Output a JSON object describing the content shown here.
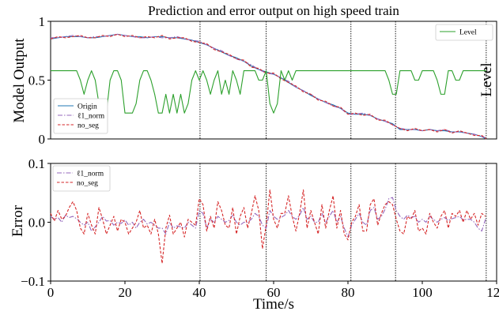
{
  "chart_data": [
    {
      "type": "line",
      "title": "Prediction and error output on high speed train",
      "ylabel": "Model Output",
      "ylabel_right": "Level",
      "xlim": [
        0,
        120
      ],
      "ylim": [
        0,
        1
      ],
      "yticks": [
        0,
        0.5,
        1
      ],
      "ytick_labels": [
        "0",
        "0.5",
        "1"
      ],
      "segment_lines_x": [
        40.2,
        58,
        80.8,
        92.8,
        117.2
      ],
      "series": [
        {
          "name": "Origin",
          "color": "#1f77b4",
          "style": "solid",
          "x": [
            0,
            2,
            4,
            6,
            8,
            10,
            12,
            14,
            16,
            18,
            20,
            22,
            24,
            26,
            28,
            30,
            32,
            34,
            36,
            38,
            40,
            42,
            44,
            46,
            48,
            50,
            52,
            54,
            56,
            58,
            60,
            62,
            64,
            66,
            68,
            70,
            72,
            74,
            76,
            78,
            80,
            82,
            84,
            86,
            88,
            90,
            92,
            94,
            96,
            98,
            100,
            102,
            104,
            106,
            108,
            110,
            112,
            114,
            116,
            117.2
          ],
          "values": [
            0.85,
            0.86,
            0.87,
            0.87,
            0.87,
            0.86,
            0.86,
            0.87,
            0.88,
            0.89,
            0.88,
            0.87,
            0.87,
            0.86,
            0.87,
            0.87,
            0.86,
            0.86,
            0.85,
            0.84,
            0.82,
            0.8,
            0.77,
            0.74,
            0.71,
            0.69,
            0.66,
            0.62,
            0.59,
            0.57,
            0.55,
            0.52,
            0.48,
            0.44,
            0.41,
            0.37,
            0.34,
            0.31,
            0.29,
            0.26,
            0.22,
            0.21,
            0.21,
            0.2,
            0.17,
            0.15,
            0.13,
            0.08,
            0.08,
            0.08,
            0.07,
            0.08,
            0.07,
            0.07,
            0.06,
            0.06,
            0.05,
            0.04,
            0.02,
            0.0
          ]
        },
        {
          "name": "ℓ1_norm",
          "color": "#9467bd",
          "style": "dashdot",
          "x": [
            0,
            2,
            4,
            6,
            8,
            10,
            12,
            14,
            16,
            18,
            20,
            22,
            24,
            26,
            28,
            30,
            32,
            34,
            36,
            38,
            40,
            42,
            44,
            46,
            48,
            50,
            52,
            54,
            56,
            58,
            60,
            62,
            64,
            66,
            68,
            70,
            72,
            74,
            76,
            78,
            80,
            82,
            84,
            86,
            88,
            90,
            92,
            94,
            96,
            98,
            100,
            102,
            104,
            106,
            108,
            110,
            112,
            114,
            116,
            117.2
          ],
          "values": [
            0.86,
            0.86,
            0.87,
            0.88,
            0.87,
            0.86,
            0.87,
            0.87,
            0.88,
            0.89,
            0.88,
            0.87,
            0.86,
            0.86,
            0.87,
            0.86,
            0.86,
            0.87,
            0.85,
            0.84,
            0.83,
            0.8,
            0.77,
            0.75,
            0.71,
            0.68,
            0.66,
            0.63,
            0.59,
            0.56,
            0.55,
            0.52,
            0.49,
            0.44,
            0.41,
            0.38,
            0.34,
            0.31,
            0.28,
            0.26,
            0.21,
            0.21,
            0.22,
            0.2,
            0.17,
            0.15,
            0.12,
            0.09,
            0.08,
            0.08,
            0.07,
            0.08,
            0.07,
            0.08,
            0.06,
            0.06,
            0.05,
            0.04,
            0.02,
            0.01
          ]
        },
        {
          "name": "no_seg",
          "color": "#d62728",
          "style": "dashed",
          "x": [
            0,
            2,
            4,
            6,
            8,
            10,
            12,
            14,
            16,
            18,
            20,
            22,
            24,
            26,
            28,
            30,
            32,
            34,
            36,
            38,
            40,
            42,
            44,
            46,
            48,
            50,
            52,
            54,
            56,
            58,
            60,
            62,
            64,
            66,
            68,
            70,
            72,
            74,
            76,
            78,
            80,
            82,
            84,
            86,
            88,
            90,
            92,
            94,
            96,
            98,
            100,
            102,
            104,
            106,
            108,
            110,
            112,
            114,
            116,
            117.2
          ],
          "values": [
            0.85,
            0.87,
            0.86,
            0.87,
            0.88,
            0.86,
            0.86,
            0.88,
            0.87,
            0.89,
            0.87,
            0.88,
            0.86,
            0.87,
            0.86,
            0.88,
            0.85,
            0.86,
            0.86,
            0.83,
            0.82,
            0.81,
            0.76,
            0.74,
            0.72,
            0.68,
            0.67,
            0.61,
            0.6,
            0.56,
            0.56,
            0.51,
            0.48,
            0.45,
            0.4,
            0.38,
            0.33,
            0.32,
            0.28,
            0.27,
            0.21,
            0.22,
            0.2,
            0.21,
            0.16,
            0.16,
            0.12,
            0.09,
            0.07,
            0.09,
            0.07,
            0.08,
            0.06,
            0.08,
            0.05,
            0.07,
            0.05,
            0.03,
            0.03,
            0.0
          ]
        },
        {
          "name": "Level",
          "color": "#2ca02c",
          "style": "solid",
          "x": [
            0,
            7,
            8,
            9,
            10,
            11,
            12,
            13,
            14,
            15,
            16,
            17,
            18,
            19,
            20,
            21,
            22,
            23,
            24,
            25,
            26,
            27,
            28,
            29,
            30,
            31,
            32,
            33,
            34,
            35,
            36,
            37,
            38,
            39,
            40,
            41,
            42,
            43,
            44,
            45,
            46,
            47,
            48,
            49,
            50,
            51,
            52,
            55,
            56,
            57,
            58,
            59,
            60,
            61,
            62,
            63,
            64,
            65,
            66,
            90,
            91,
            92,
            93,
            94,
            95,
            96,
            97,
            98,
            99,
            100,
            101,
            102,
            103,
            104,
            105,
            106,
            107,
            108,
            109,
            110,
            111,
            112,
            113,
            117.2
          ],
          "values": [
            0.58,
            0.58,
            0.5,
            0.38,
            0.5,
            0.58,
            0.5,
            0.3,
            0.22,
            0.22,
            0.5,
            0.58,
            0.58,
            0.5,
            0.22,
            0.22,
            0.22,
            0.3,
            0.5,
            0.58,
            0.58,
            0.5,
            0.38,
            0.22,
            0.22,
            0.38,
            0.22,
            0.38,
            0.22,
            0.38,
            0.22,
            0.3,
            0.5,
            0.58,
            0.5,
            0.58,
            0.5,
            0.38,
            0.5,
            0.58,
            0.38,
            0.5,
            0.38,
            0.58,
            0.5,
            0.38,
            0.58,
            0.58,
            0.5,
            0.5,
            0.58,
            0.3,
            0.22,
            0.3,
            0.58,
            0.5,
            0.58,
            0.5,
            0.58,
            0.58,
            0.5,
            0.38,
            0.38,
            0.58,
            0.58,
            0.58,
            0.58,
            0.5,
            0.5,
            0.58,
            0.58,
            0.58,
            0.58,
            0.5,
            0.38,
            0.38,
            0.58,
            0.58,
            0.5,
            0.5,
            0.58,
            0.58,
            0.58,
            0.58
          ]
        }
      ],
      "legend": [
        {
          "position": "bottom-left",
          "entries": [
            "Origin",
            "ℓ1_norm",
            "no_seg"
          ]
        },
        {
          "position": "top-right",
          "entries": [
            "Level"
          ]
        }
      ]
    },
    {
      "type": "line",
      "xlabel": "Time/s",
      "ylabel": "Error",
      "xlim": [
        0,
        120
      ],
      "ylim": [
        -0.1,
        0.1
      ],
      "xticks": [
        0,
        20,
        40,
        60,
        80,
        100,
        120
      ],
      "xtick_labels": [
        "0",
        "20",
        "40",
        "60",
        "80",
        "100",
        "120"
      ],
      "yticks": [
        -0.1,
        0.0,
        0.1
      ],
      "ytick_labels": [
        "−0.1",
        "0.0",
        "0.1"
      ],
      "segment_lines_x": [
        40.2,
        58,
        80.8,
        92.8,
        117.2
      ],
      "series": [
        {
          "name": "ℓ1_norm",
          "color": "#9467bd",
          "style": "dashdot",
          "x": [
            0,
            1,
            2,
            3,
            4,
            5,
            6,
            7,
            8,
            9,
            10,
            11,
            12,
            13,
            14,
            15,
            16,
            17,
            18,
            19,
            20,
            21,
            22,
            23,
            24,
            25,
            26,
            27,
            28,
            29,
            30,
            31,
            32,
            33,
            34,
            35,
            36,
            37,
            38,
            39,
            40,
            41,
            42,
            43,
            44,
            45,
            46,
            47,
            48,
            49,
            50,
            51,
            52,
            53,
            54,
            55,
            56,
            57,
            58,
            59,
            60,
            61,
            62,
            63,
            64,
            65,
            66,
            67,
            68,
            69,
            70,
            71,
            72,
            73,
            74,
            75,
            76,
            77,
            78,
            79,
            80,
            81,
            82,
            83,
            84,
            85,
            86,
            87,
            88,
            89,
            90,
            91,
            92,
            93,
            94,
            95,
            96,
            97,
            98,
            99,
            100,
            101,
            102,
            103,
            104,
            105,
            106,
            107,
            108,
            109,
            110,
            111,
            112,
            113,
            114,
            115,
            116,
            117
          ],
          "values": [
            0.01,
            0.005,
            0.008,
            0.0,
            0.012,
            0.008,
            0.01,
            0.006,
            0.0,
            -0.005,
            0.0,
            -0.015,
            -0.008,
            0.0,
            0.01,
            0.002,
            0.003,
            -0.005,
            0.0,
            -0.002,
            0.004,
            -0.005,
            0.0,
            -0.01,
            0.0,
            0.005,
            -0.003,
            0.0,
            -0.005,
            -0.01,
            -0.01,
            -0.02,
            0.0,
            -0.01,
            -0.006,
            -0.008,
            -0.01,
            0.0,
            -0.005,
            -0.01,
            0.02,
            0.015,
            -0.01,
            0.005,
            0.0,
            0.01,
            0.005,
            0.0,
            0.003,
            0.012,
            0.0,
            -0.005,
            0.0,
            0.0,
            0.005,
            0.015,
            0.01,
            -0.005,
            -0.01,
            0.02,
            0.01,
            0.005,
            0.008,
            0.012,
            0.02,
            0.01,
            0.005,
            0.012,
            0.025,
            0.005,
            0.01,
            0.0,
            0.0,
            0.015,
            0.0,
            0.01,
            0.02,
            0.0,
            0.01,
            -0.01,
            -0.025,
            -0.005,
            0.005,
            0.015,
            0.0,
            -0.005,
            0.02,
            0.025,
            0.005,
            0.01,
            0.022,
            0.04,
            0.042,
            0.02,
            0.01,
            0.005,
            0.012,
            0.008,
            0.01,
            0.0,
            0.005,
            0.0,
            0.01,
            0.005,
            0.0,
            0.005,
            0.008,
            0.003,
            0.006,
            0.008,
            0.01,
            0.004,
            0.005,
            0.005,
            0.0,
            -0.01,
            -0.015,
            0.005
          ]
        },
        {
          "name": "no_seg",
          "color": "#d62728",
          "style": "dashed",
          "x": [
            0,
            1,
            2,
            3,
            4,
            5,
            6,
            7,
            8,
            9,
            10,
            11,
            12,
            13,
            14,
            15,
            16,
            17,
            18,
            19,
            20,
            21,
            22,
            23,
            24,
            25,
            26,
            27,
            28,
            29,
            30,
            31,
            32,
            33,
            34,
            35,
            36,
            37,
            38,
            39,
            40,
            41,
            42,
            43,
            44,
            45,
            46,
            47,
            48,
            49,
            50,
            51,
            52,
            53,
            54,
            55,
            56,
            57,
            58,
            59,
            60,
            61,
            62,
            63,
            64,
            65,
            66,
            67,
            68,
            69,
            70,
            71,
            72,
            73,
            74,
            75,
            76,
            77,
            78,
            79,
            80,
            81,
            82,
            83,
            84,
            85,
            86,
            87,
            88,
            89,
            90,
            91,
            92,
            93,
            94,
            95,
            96,
            97,
            98,
            99,
            100,
            101,
            102,
            103,
            104,
            105,
            106,
            107,
            108,
            109,
            110,
            111,
            112,
            113,
            114,
            115,
            116,
            117
          ],
          "values": [
            0.015,
            0.002,
            0.02,
            0.005,
            0.01,
            0.025,
            0.035,
            0.02,
            -0.01,
            -0.02,
            0.015,
            -0.005,
            -0.02,
            0.025,
            0.005,
            -0.02,
            -0.005,
            0.01,
            -0.015,
            0.005,
            0.0,
            -0.02,
            -0.01,
            0.0,
            0.02,
            -0.01,
            -0.005,
            -0.02,
            0.005,
            -0.02,
            -0.07,
            -0.01,
            0.012,
            -0.02,
            -0.01,
            0.0,
            -0.025,
            0.005,
            0.0,
            -0.005,
            0.04,
            0.03,
            -0.015,
            0.01,
            -0.01,
            0.035,
            0.02,
            -0.005,
            -0.01,
            0.025,
            -0.02,
            0.01,
            0.025,
            -0.01,
            0.015,
            0.045,
            0.02,
            -0.045,
            -0.005,
            0.055,
            0.005,
            -0.01,
            0.015,
            0.015,
            0.045,
            0.01,
            -0.015,
            0.015,
            0.055,
            -0.01,
            0.02,
            0.0,
            -0.02,
            0.03,
            -0.01,
            0.02,
            0.045,
            -0.01,
            0.02,
            -0.02,
            -0.03,
            0.0,
            0.01,
            0.03,
            -0.015,
            -0.015,
            0.03,
            0.04,
            -0.005,
            0.015,
            0.03,
            0.035,
            0.03,
            0.005,
            -0.015,
            -0.02,
            0.01,
            0.005,
            0.02,
            -0.015,
            -0.01,
            -0.02,
            0.015,
            0.0,
            -0.01,
            0.01,
            0.02,
            -0.01,
            0.015,
            0.01,
            0.02,
            0.0,
            0.02,
            0.005,
            0.015,
            -0.005,
            0.015,
            0.01
          ]
        }
      ],
      "legend": [
        {
          "position": "top-left",
          "entries": [
            "ℓ1_norm",
            "no_seg"
          ]
        }
      ]
    }
  ]
}
